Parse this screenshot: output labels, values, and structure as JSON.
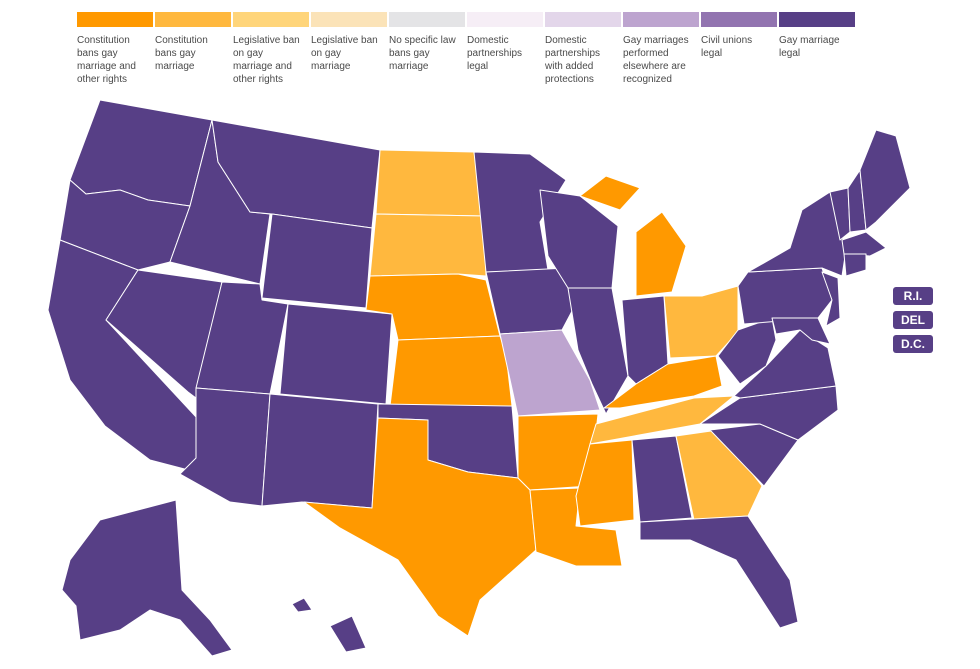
{
  "legend": {
    "items": [
      {
        "key": "con-ban-plus",
        "label": "Constitution bans gay marriage and other rights",
        "color": "#ff9900"
      },
      {
        "key": "con-ban",
        "label": "Constitution bans gay marriage",
        "color": "#ffb83e"
      },
      {
        "key": "leg-ban-plus",
        "label": "Legislative ban on gay marriage and other rights",
        "color": "#ffd57a"
      },
      {
        "key": "leg-ban",
        "label": "Legislative ban on gay marriage",
        "color": "#fbe3b8"
      },
      {
        "key": "no-law",
        "label": "No specific law bans gay marriage",
        "color": "#e4e4e6"
      },
      {
        "key": "dp",
        "label": "Domestic partnerships legal",
        "color": "#f6eef6"
      },
      {
        "key": "dp-plus",
        "label": "Domestic partnerships with added protections",
        "color": "#e3d6ea"
      },
      {
        "key": "recognized",
        "label": "Gay marriages performed elsewhere are recognized",
        "color": "#bda4cf"
      },
      {
        "key": "civil-unions",
        "label": "Civil unions legal",
        "color": "#9274b0"
      },
      {
        "key": "marriage",
        "label": "Gay marriage legal",
        "color": "#573f86"
      }
    ]
  },
  "states": {
    "WA": "marriage",
    "OR": "marriage",
    "CA": "marriage",
    "ID": "marriage",
    "NV": "marriage",
    "UT": "marriage",
    "AZ": "marriage",
    "MT": "marriage",
    "WY": "marriage",
    "CO": "marriage",
    "NM": "marriage",
    "OK": "marriage",
    "MN": "marriage",
    "IA": "marriage",
    "WI": "marriage",
    "IL": "marriage",
    "IN": "marriage",
    "AL": "marriage",
    "FL": "marriage",
    "SC": "marriage",
    "NC": "marriage",
    "VA": "marriage",
    "WV": "marriage",
    "PA": "marriage",
    "NY": "marriage",
    "VT": "marriage",
    "NH": "marriage",
    "ME": "marriage",
    "MA": "marriage",
    "CT": "marriage",
    "NJ": "marriage",
    "MD": "marriage",
    "AK": "marriage",
    "HI": "marriage",
    "ND": "con-ban",
    "SD": "con-ban",
    "OH": "con-ban",
    "GA": "con-ban",
    "TN": "con-ban",
    "NE": "con-ban-plus",
    "KS": "con-ban-plus",
    "TX": "con-ban-plus",
    "AR": "con-ban-plus",
    "LA": "con-ban-plus",
    "MS": "con-ban-plus",
    "MI": "con-ban-plus",
    "KY": "con-ban-plus",
    "MO": "recognized"
  },
  "small_states": [
    {
      "label": "R.I.",
      "status": "marriage"
    },
    {
      "label": "DEL",
      "status": "marriage"
    },
    {
      "label": "D.C.",
      "status": "marriage"
    }
  ]
}
